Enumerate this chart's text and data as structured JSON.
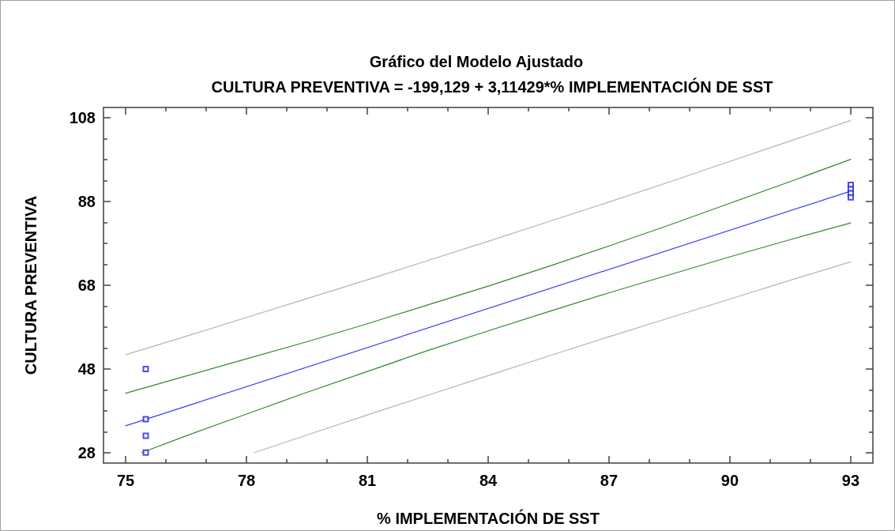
{
  "chart_data": {
    "type": "line",
    "title": "Gráfico del Modelo Ajustado",
    "subtitle": "CULTURA PREVENTIVA = -199,129 + 3,11429*% IMPLEMENTACIÓN DE SST",
    "xlabel": "% IMPLEMENTACIÓN DE SST",
    "ylabel": "CULTURA PREVENTIVA",
    "xlim": [
      74.45,
      93.55
    ],
    "ylim": [
      25.5,
      110.5
    ],
    "xticks": [
      75,
      {
        "value": 76,
        "label": null
      },
      {
        "value": 77,
        "label": null
      },
      78,
      {
        "value": 79,
        "label": null
      },
      {
        "value": 80,
        "label": null
      },
      81,
      {
        "value": 82,
        "label": null
      },
      {
        "value": 83,
        "label": null
      },
      84,
      {
        "value": 85,
        "label": null
      },
      {
        "value": 86,
        "label": null
      },
      87,
      {
        "value": 88,
        "label": null
      },
      {
        "value": 89,
        "label": null
      },
      90,
      {
        "value": 91,
        "label": null
      },
      {
        "value": 92,
        "label": null
      },
      93
    ],
    "yticks": [
      28,
      {
        "value": 33,
        "label": null
      },
      {
        "value": 38,
        "label": null
      },
      {
        "value": 43,
        "label": null
      },
      48,
      {
        "value": 53,
        "label": null
      },
      {
        "value": 58,
        "label": null
      },
      {
        "value": 63,
        "label": null
      },
      68,
      {
        "value": 73,
        "label": null
      },
      {
        "value": 78,
        "label": null
      },
      {
        "value": 83,
        "label": null
      },
      88,
      {
        "value": 93,
        "label": null
      },
      {
        "value": 98,
        "label": null
      },
      {
        "value": 103,
        "label": null
      },
      108
    ],
    "grid": false,
    "series": [
      {
        "color": "#b4b4b4",
        "x": [
          75,
          76.5,
          78,
          79.5,
          81,
          82.5,
          84,
          85.5,
          87,
          88.5,
          90,
          91.5,
          93
        ],
        "values": [
          51.4,
          55.8,
          60.3,
          64.8,
          69.3,
          73.9,
          78.5,
          83.2,
          87.9,
          92.7,
          97.6,
          102.5,
          107.4
        ]
      },
      {
        "color": "#b4b4b4",
        "x": [
          78.2,
          79.5,
          81,
          82.5,
          84,
          85.5,
          87,
          88.5,
          90,
          91.5,
          93
        ],
        "values": [
          28,
          32.2,
          37.0,
          41.7,
          46.4,
          51.1,
          55.7,
          60.2,
          64.7,
          69.2,
          73.6
        ]
      },
      {
        "color": "#2e8b2e",
        "x": [
          75,
          76.5,
          78,
          79.5,
          81,
          82.5,
          84,
          85.5,
          87,
          88.5,
          90,
          91.5,
          93
        ],
        "values": [
          42.2,
          46.3,
          50.4,
          54.5,
          58.8,
          63.3,
          67.8,
          72.5,
          77.4,
          82.4,
          87.6,
          92.8,
          98.1
        ]
      },
      {
        "color": "#2e8b2e",
        "x": [
          75.4,
          76.5,
          78,
          79.5,
          81,
          82.5,
          84,
          85.5,
          87,
          88.5,
          90,
          91.5,
          93
        ],
        "values": [
          28,
          32.0,
          37.2,
          42.4,
          47.4,
          52.4,
          57.1,
          61.7,
          66.2,
          70.5,
          74.8,
          78.9,
          82.9
        ]
      },
      {
        "color": "#3c3cff",
        "x": [
          75,
          93
        ],
        "values": [
          34.4,
          90.5
        ]
      },
      {
        "type": "scatter",
        "color": "#2020e0",
        "marker": "square",
        "x": [
          75.5,
          75.5,
          75.5,
          75.5,
          93,
          93,
          93,
          93
        ],
        "values": [
          48,
          36,
          32,
          28,
          92,
          91,
          90,
          89
        ]
      }
    ]
  }
}
